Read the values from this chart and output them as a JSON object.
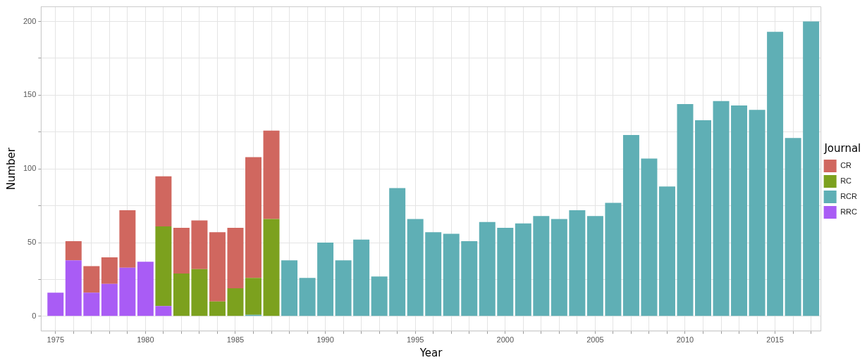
{
  "chart_data": {
    "type": "bar",
    "stacked": true,
    "xlabel": "Year",
    "ylabel": "Number",
    "legend_title": "Journal",
    "legend": "right",
    "grid": true,
    "x": [
      1975,
      1976,
      1977,
      1978,
      1979,
      1980,
      1981,
      1982,
      1983,
      1984,
      1985,
      1986,
      1987,
      1988,
      1989,
      1990,
      1991,
      1992,
      1993,
      1994,
      1995,
      1996,
      1997,
      1998,
      1999,
      2000,
      2001,
      2002,
      2003,
      2004,
      2005,
      2006,
      2007,
      2008,
      2009,
      2010,
      2011,
      2012,
      2013,
      2014,
      2015,
      2016,
      2017
    ],
    "xlim": [
      1974.2,
      2017.55
    ],
    "xticks": [
      1975,
      {
        "value": 1976,
        "label": null
      },
      {
        "value": 1977,
        "label": null
      },
      {
        "value": 1978,
        "label": null
      },
      {
        "value": 1979,
        "label": null
      },
      1980,
      {
        "value": 1981,
        "label": null
      },
      {
        "value": 1982,
        "label": null
      },
      {
        "value": 1983,
        "label": null
      },
      {
        "value": 1984,
        "label": null
      },
      1985,
      {
        "value": 1986,
        "label": null
      },
      {
        "value": 1987,
        "label": null
      },
      {
        "value": 1988,
        "label": null
      },
      {
        "value": 1989,
        "label": null
      },
      1990,
      {
        "value": 1991,
        "label": null
      },
      {
        "value": 1992,
        "label": null
      },
      {
        "value": 1993,
        "label": null
      },
      {
        "value": 1994,
        "label": null
      },
      1995,
      {
        "value": 1996,
        "label": null
      },
      {
        "value": 1997,
        "label": null
      },
      {
        "value": 1998,
        "label": null
      },
      {
        "value": 1999,
        "label": null
      },
      2000,
      {
        "value": 2001,
        "label": null
      },
      {
        "value": 2002,
        "label": null
      },
      {
        "value": 2003,
        "label": null
      },
      {
        "value": 2004,
        "label": null
      },
      2005,
      {
        "value": 2006,
        "label": null
      },
      {
        "value": 2007,
        "label": null
      },
      {
        "value": 2008,
        "label": null
      },
      {
        "value": 2009,
        "label": null
      },
      2010,
      {
        "value": 2011,
        "label": null
      },
      {
        "value": 2012,
        "label": null
      },
      {
        "value": 2013,
        "label": null
      },
      {
        "value": 2014,
        "label": null
      },
      2015,
      {
        "value": 2016,
        "label": null
      },
      {
        "value": 2017,
        "label": null
      }
    ],
    "ylim": [
      -10,
      210
    ],
    "yticks": [
      0,
      {
        "value": 25,
        "label": null
      },
      50,
      {
        "value": 75,
        "label": null
      },
      100,
      {
        "value": 125,
        "label": null
      },
      150,
      {
        "value": 175,
        "label": null
      },
      200
    ],
    "series": [
      {
        "name": "RRC",
        "color": "#a95cf5",
        "values": [
          16,
          38,
          16,
          22,
          33,
          37,
          7,
          null,
          null,
          null,
          null,
          null,
          null,
          null,
          null,
          null,
          null,
          null,
          null,
          null,
          null,
          null,
          null,
          null,
          null,
          null,
          null,
          null,
          null,
          null,
          null,
          null,
          null,
          null,
          null,
          null,
          null,
          null,
          null,
          null,
          null,
          null,
          null
        ]
      },
      {
        "name": "RCR",
        "color": "#5fafb5",
        "values": [
          null,
          null,
          null,
          null,
          null,
          null,
          null,
          null,
          null,
          null,
          null,
          1,
          null,
          38,
          26,
          50,
          38,
          52,
          27,
          87,
          66,
          57,
          56,
          51,
          64,
          60,
          63,
          68,
          66,
          72,
          68,
          77,
          123,
          107,
          88,
          144,
          133,
          146,
          143,
          140,
          193,
          121,
          200
        ]
      },
      {
        "name": "RC",
        "color": "#7ca11e",
        "values": [
          null,
          null,
          null,
          null,
          null,
          null,
          54,
          29,
          32,
          10,
          19,
          25,
          66,
          null,
          null,
          null,
          null,
          null,
          null,
          null,
          null,
          null,
          null,
          null,
          null,
          null,
          null,
          null,
          null,
          null,
          null,
          null,
          null,
          null,
          null,
          null,
          null,
          null,
          null,
          null,
          null,
          null,
          null
        ]
      },
      {
        "name": "CR",
        "color": "#d0675f",
        "values": [
          null,
          13,
          18,
          18,
          39,
          null,
          34,
          31,
          33,
          47,
          41,
          82,
          60,
          null,
          null,
          null,
          null,
          null,
          null,
          null,
          null,
          null,
          null,
          null,
          null,
          null,
          null,
          null,
          null,
          null,
          null,
          null,
          null,
          null,
          null,
          null,
          null,
          null,
          null,
          null,
          null,
          null,
          null
        ]
      }
    ]
  }
}
